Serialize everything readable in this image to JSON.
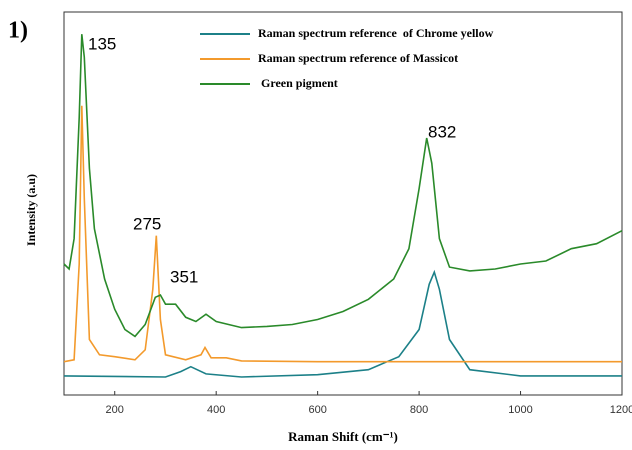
{
  "chart_data": {
    "type": "line",
    "panel_label": "1)",
    "x_label": "Raman Shift (cm⁻¹)",
    "y_label": "Intensity (a.u)",
    "xlim": [
      100,
      1200
    ],
    "xticks": [
      200,
      400,
      600,
      800,
      1000,
      1200
    ],
    "ylim": [
      0,
      100
    ],
    "annotations": [
      "135",
      "275",
      "351",
      "832"
    ],
    "series": [
      {
        "name": "Raman spectrum reference  of Chrome yellow",
        "color": "#1c8088",
        "x": [
          100,
          300,
          330,
          350,
          380,
          450,
          600,
          700,
          760,
          800,
          820,
          830,
          840,
          860,
          900,
          1000,
          1200
        ],
        "values": [
          5,
          4.7,
          6.1,
          7.4,
          5.5,
          4.7,
          5.3,
          6.6,
          10,
          17.1,
          28.9,
          32.1,
          27.6,
          14.5,
          6.6,
          5,
          5
        ]
      },
      {
        "name": "Raman spectrum reference of Massicot",
        "color": "#f39a2c",
        "x": [
          100,
          120,
          130,
          135,
          140,
          150,
          170,
          200,
          240,
          260,
          275,
          282,
          290,
          300,
          340,
          370,
          378,
          390,
          420,
          450,
          600,
          1200
        ],
        "values": [
          8.7,
          9.2,
          34.2,
          75.5,
          51.3,
          14.5,
          10.5,
          10,
          9.2,
          11.8,
          27.6,
          41.6,
          19.7,
          10.5,
          9.2,
          10.5,
          12.4,
          9.7,
          9.7,
          8.9,
          8.7,
          8.7
        ]
      },
      {
        "name": " Green pigment",
        "color": "#2a8a2a",
        "x": [
          100,
          110,
          120,
          130,
          135,
          140,
          150,
          160,
          180,
          200,
          220,
          240,
          260,
          280,
          290,
          300,
          320,
          340,
          360,
          380,
          400,
          450,
          500,
          550,
          600,
          650,
          700,
          750,
          780,
          800,
          815,
          825,
          840,
          860,
          900,
          950,
          1000,
          1050,
          1100,
          1150,
          1200
        ],
        "values": [
          34.2,
          32.9,
          40.8,
          72.4,
          94.2,
          88.2,
          59.2,
          43.4,
          30.3,
          22.4,
          17.1,
          15.3,
          18.4,
          25.5,
          26.1,
          23.7,
          23.7,
          20.3,
          19.2,
          21.1,
          19.2,
          17.6,
          17.9,
          18.4,
          19.7,
          21.8,
          25,
          30.3,
          38.2,
          53.9,
          67.1,
          60.5,
          40.8,
          33.4,
          32.4,
          32.9,
          34.2,
          35,
          38.2,
          39.5,
          42.9
        ]
      }
    ]
  }
}
